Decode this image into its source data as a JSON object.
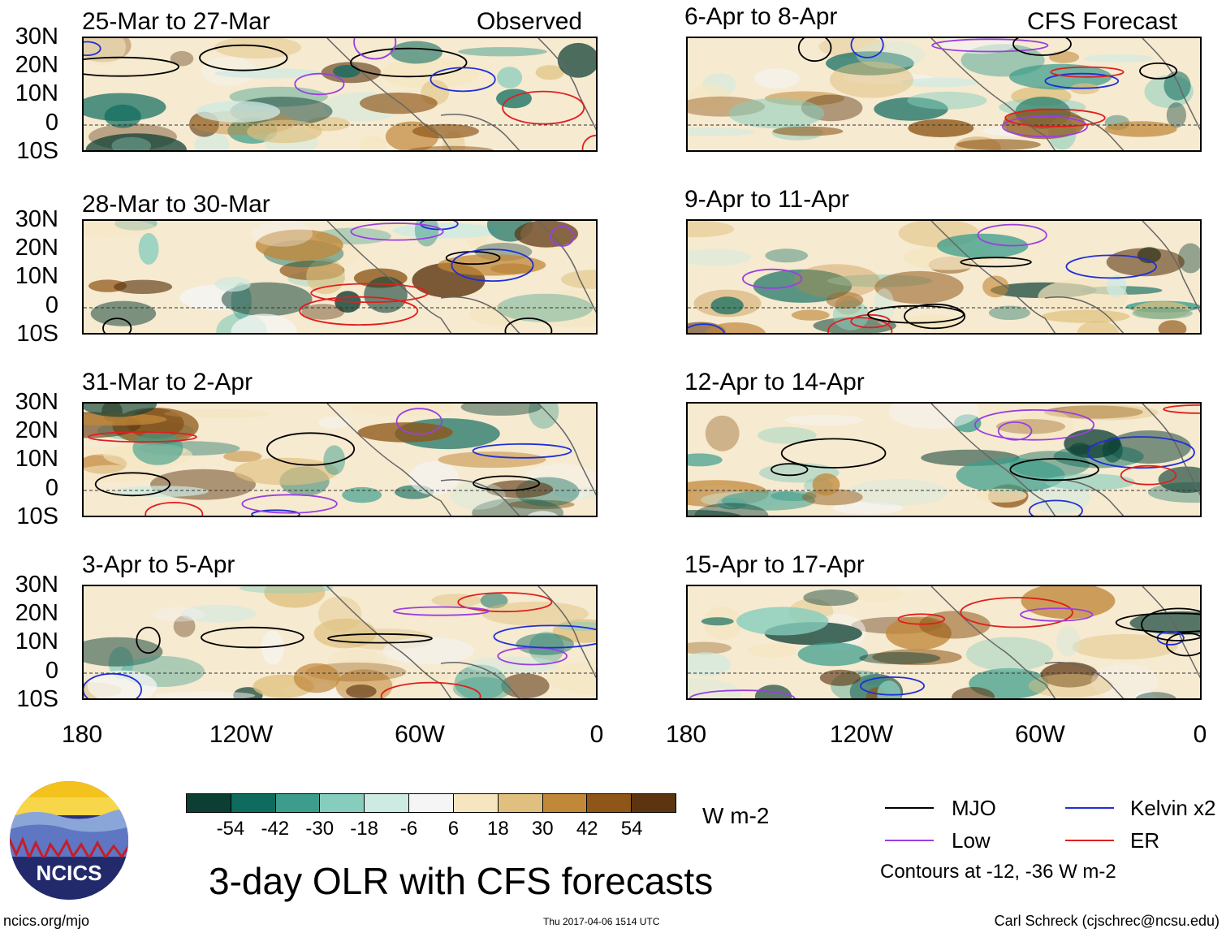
{
  "header": {
    "observed_label": "Observed",
    "forecast_label": "CFS Forecast"
  },
  "lat_labels": [
    "30N",
    "20N",
    "10N",
    "0",
    "10S"
  ],
  "lon_labels": [
    "180",
    "120W",
    "60W",
    "0"
  ],
  "panels": [
    {
      "title": "25-Mar to 27-Mar"
    },
    {
      "title": "6-Apr to 8-Apr"
    },
    {
      "title": "28-Mar to 30-Mar"
    },
    {
      "title": "9-Apr to 11-Apr"
    },
    {
      "title": "31-Mar to 2-Apr"
    },
    {
      "title": "12-Apr to 14-Apr"
    },
    {
      "title": "3-Apr to 5-Apr"
    },
    {
      "title": "15-Apr to 17-Apr"
    }
  ],
  "colorbar": {
    "colors": [
      "#0c3e33",
      "#0e6b5e",
      "#3d9d8c",
      "#86cdbd",
      "#cdeae3",
      "#f5f5f5",
      "#f5e6c0",
      "#dfc07e",
      "#c1883a",
      "#8e5618",
      "#5c3510"
    ],
    "labels": [
      "-54",
      "-42",
      "-30",
      "-18",
      "-6",
      "6",
      "18",
      "30",
      "42",
      "54"
    ],
    "units": "W m-2"
  },
  "title": "3-day OLR with CFS forecasts",
  "legend": {
    "items": [
      {
        "label": "MJO",
        "color": "#000000"
      },
      {
        "label": "Kelvin x2",
        "color": "#1f2fd6"
      },
      {
        "label": "Low",
        "color": "#9a3fe0"
      },
      {
        "label": "ER",
        "color": "#e01f1f"
      }
    ],
    "contour_note": "Contours at -12, -36 W m-2"
  },
  "footer": {
    "site": "ncics.org/mjo",
    "timestamp": "Thu 2017-04-06 1514 UTC",
    "author": "Carl Schreck (cjschrec@ncsu.edu)"
  },
  "logo": {
    "text": "NCICS"
  },
  "chart_data": {
    "type": "heatmap",
    "title": "3-day OLR with CFS forecasts",
    "variable": "OLR anomaly",
    "units": "W m-2",
    "xlim": [
      "180",
      "0"
    ],
    "ylim": [
      "10S",
      "30N"
    ],
    "color_levels": [
      -54,
      -42,
      -30,
      -18,
      -6,
      6,
      18,
      30,
      42,
      54
    ],
    "contour_levels": [
      -12,
      -36
    ],
    "overlays": [
      "MJO",
      "Kelvin x2",
      "Low",
      "ER"
    ],
    "observed_periods": [
      "25-Mar to 27-Mar",
      "28-Mar to 30-Mar",
      "31-Mar to 2-Apr",
      "3-Apr to 5-Apr"
    ],
    "forecast_periods": [
      "6-Apr to 8-Apr",
      "9-Apr to 11-Apr",
      "12-Apr to 14-Apr",
      "15-Apr to 17-Apr"
    ]
  }
}
